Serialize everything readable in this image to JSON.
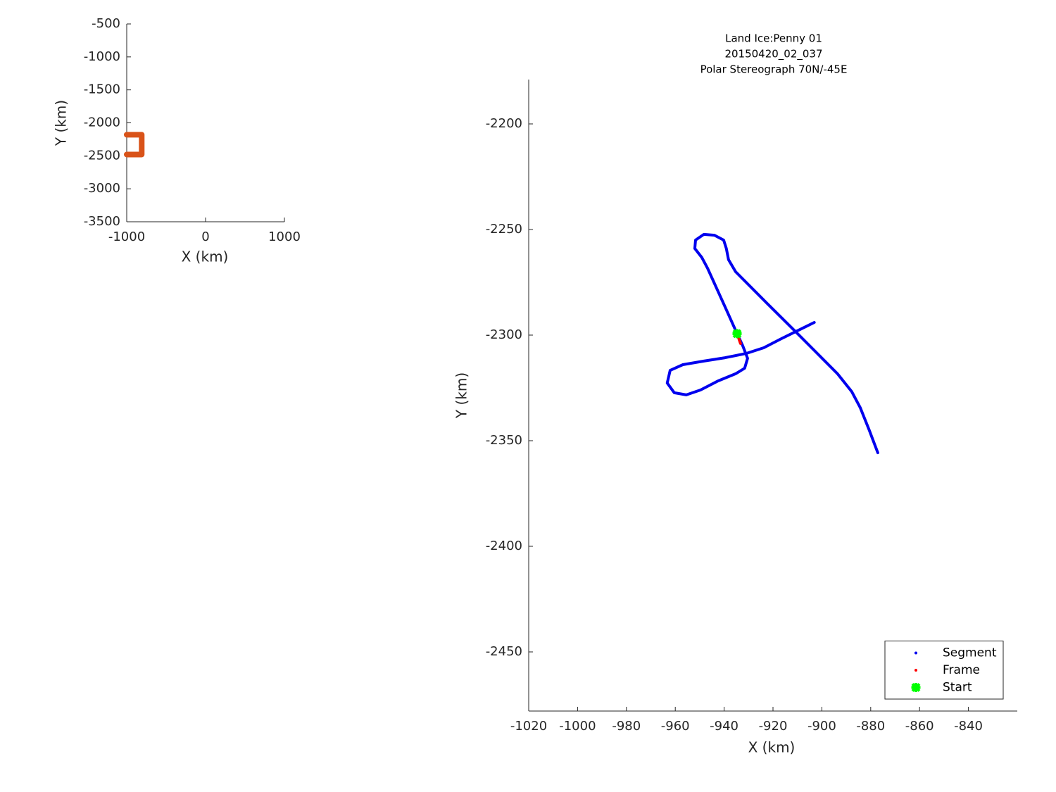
{
  "chart_data": [
    {
      "type": "line",
      "xlabel": "X (km)",
      "ylabel": "Y (km)",
      "xlim": [
        -1000,
        1000
      ],
      "ylim": [
        -3500,
        -500
      ],
      "xticks": [
        -1000,
        0,
        1000
      ],
      "yticks": [
        -3500,
        -3000,
        -2500,
        -2000,
        -1500,
        -1000,
        -500
      ],
      "series": [
        {
          "color": "#d95319",
          "x": [
            -1000,
            -810,
            -810,
            -1000
          ],
          "y": [
            -2180,
            -2180,
            -2480,
            -2480
          ]
        }
      ]
    },
    {
      "type": "line",
      "title": [
        "Land Ice:Penny 01",
        "20150420_02_037",
        "Polar Stereograph 70N/-45E"
      ],
      "xlabel": "X (km)",
      "ylabel": "Y (km)",
      "xlim": [
        -1020,
        -820
      ],
      "ylim": [
        -2478,
        -2179
      ],
      "xticks": [
        -1020,
        -1000,
        -980,
        -960,
        -940,
        -920,
        -900,
        -880,
        -860,
        -840
      ],
      "yticks": [
        -2450,
        -2400,
        -2350,
        -2300,
        -2250,
        -2200
      ],
      "legend": "lower right",
      "series": [
        {
          "name": "Segment",
          "color": "#0000ee",
          "marker": "line",
          "x": [
            -934.7,
            -939.6,
            -946.8,
            -949.1,
            -952.0,
            -951.7,
            -948.3,
            -944.0,
            -940.2,
            -939.1,
            -938.2,
            -935.3,
            -931.0,
            -922.4,
            -910.8,
            -902.2,
            -893.6,
            -887.8,
            -884.3,
            -880.6,
            -877.1,
            null,
            -934.7,
            -932.4,
            -930.4,
            -931.6,
            -935.3,
            -942.5,
            -949.7,
            -955.5,
            -960.4,
            -963.3,
            -962.1,
            -956.9,
            -948.3,
            -939.6,
            -931.0,
            -923.8,
            -916.6,
            -903.1
          ],
          "y": [
            -2299.3,
            -2286.7,
            -2268.3,
            -2263.3,
            -2259.0,
            -2255.0,
            -2252.3,
            -2252.7,
            -2255.0,
            -2259.0,
            -2264.3,
            -2270.0,
            -2275.0,
            -2285.0,
            -2298.3,
            -2308.3,
            -2318.3,
            -2326.7,
            -2334.3,
            -2345.0,
            -2355.7,
            null,
            -2299.3,
            -2305.0,
            -2311.0,
            -2315.7,
            -2318.3,
            -2321.7,
            -2326.0,
            -2328.3,
            -2327.3,
            -2322.7,
            -2316.7,
            -2314.0,
            -2312.3,
            -2310.7,
            -2308.7,
            -2306.0,
            -2301.7,
            -2294.0
          ]
        },
        {
          "name": "Frame",
          "color": "#ff0000",
          "marker": "line",
          "x": [
            -934.7,
            -933.3
          ],
          "y": [
            -2299.3,
            -2304.0
          ]
        },
        {
          "name": "Start",
          "color": "#00ff00",
          "marker": "x",
          "x": [
            -934.7
          ],
          "y": [
            -2299.3
          ]
        }
      ]
    }
  ]
}
